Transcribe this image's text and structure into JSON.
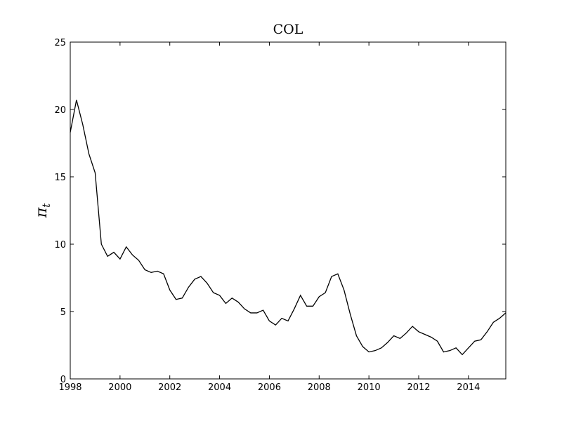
{
  "chart_data": {
    "type": "line",
    "title": "COL",
    "xlabel": "",
    "ylabel": "π",
    "ylabel_subscript": "t",
    "xlim": [
      1998,
      2015.5
    ],
    "ylim": [
      0,
      25
    ],
    "x_ticks": [
      1998,
      2000,
      2002,
      2004,
      2006,
      2008,
      2010,
      2012,
      2014
    ],
    "y_ticks": [
      0,
      5,
      10,
      15,
      20,
      25
    ],
    "grid": false,
    "legend": "none",
    "line_color": "#000000",
    "series": [
      {
        "x": [
          1998.0,
          1998.25,
          1998.5,
          1998.75,
          1999.0,
          1999.25,
          1999.5,
          1999.75,
          2000.0,
          2000.25,
          2000.5,
          2000.75,
          2001.0,
          2001.25,
          2001.5,
          2001.75,
          2002.0,
          2002.25,
          2002.5,
          2002.75,
          2003.0,
          2003.25,
          2003.5,
          2003.75,
          2004.0,
          2004.25,
          2004.5,
          2004.75,
          2005.0,
          2005.25,
          2005.5,
          2005.75,
          2006.0,
          2006.25,
          2006.5,
          2006.75,
          2007.0,
          2007.25,
          2007.5,
          2007.75,
          2008.0,
          2008.25,
          2008.5,
          2008.75,
          2009.0,
          2009.25,
          2009.5,
          2009.75,
          2010.0,
          2010.25,
          2010.5,
          2010.75,
          2011.0,
          2011.25,
          2011.5,
          2011.75,
          2012.0,
          2012.25,
          2012.5,
          2012.75,
          2013.0,
          2013.25,
          2013.5,
          2013.75,
          2014.0,
          2014.25,
          2014.5,
          2014.75,
          2015.0,
          2015.25,
          2015.5
        ],
        "y": [
          18.3,
          20.7,
          18.9,
          16.7,
          15.3,
          10.0,
          9.1,
          9.4,
          8.9,
          9.8,
          9.2,
          8.8,
          8.1,
          7.9,
          8.0,
          7.8,
          6.6,
          5.9,
          6.0,
          6.8,
          7.4,
          7.6,
          7.1,
          6.4,
          6.2,
          5.6,
          6.0,
          5.7,
          5.2,
          4.9,
          4.9,
          5.1,
          4.3,
          4.0,
          4.5,
          4.3,
          5.2,
          6.2,
          5.4,
          5.4,
          6.1,
          6.4,
          7.6,
          7.8,
          6.6,
          4.8,
          3.2,
          2.4,
          2.0,
          2.1,
          2.3,
          2.7,
          3.2,
          3.0,
          3.4,
          3.9,
          3.5,
          3.3,
          3.1,
          2.8,
          2.0,
          2.1,
          2.3,
          1.8,
          2.3,
          2.8,
          2.9,
          3.5,
          4.2,
          4.5,
          4.9
        ]
      }
    ]
  }
}
